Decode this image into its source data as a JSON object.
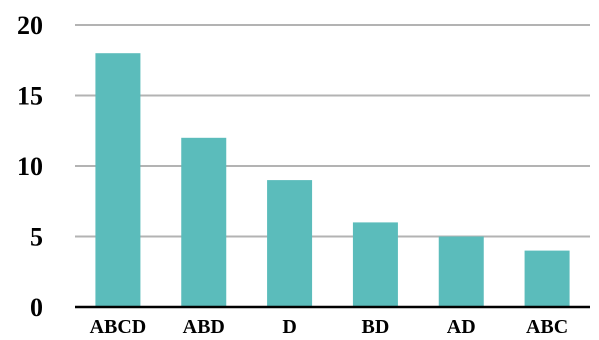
{
  "chart_data": {
    "type": "bar",
    "title": "",
    "xlabel": "",
    "ylabel": "",
    "categories": [
      "ABCD",
      "ABD",
      "D",
      "BD",
      "AD",
      "ABC"
    ],
    "values": [
      18,
      12,
      9,
      6,
      5,
      4
    ],
    "ylim": [
      0,
      20
    ],
    "yticks": [
      0,
      5,
      10,
      15,
      20
    ],
    "ytick_labels": [
      "0",
      "5",
      "10",
      "15",
      "20"
    ],
    "grid": true,
    "legend": "none",
    "colors": {
      "bar": "#5bbcbb",
      "grid": "#b3b3b3",
      "axis": "#000000"
    }
  }
}
